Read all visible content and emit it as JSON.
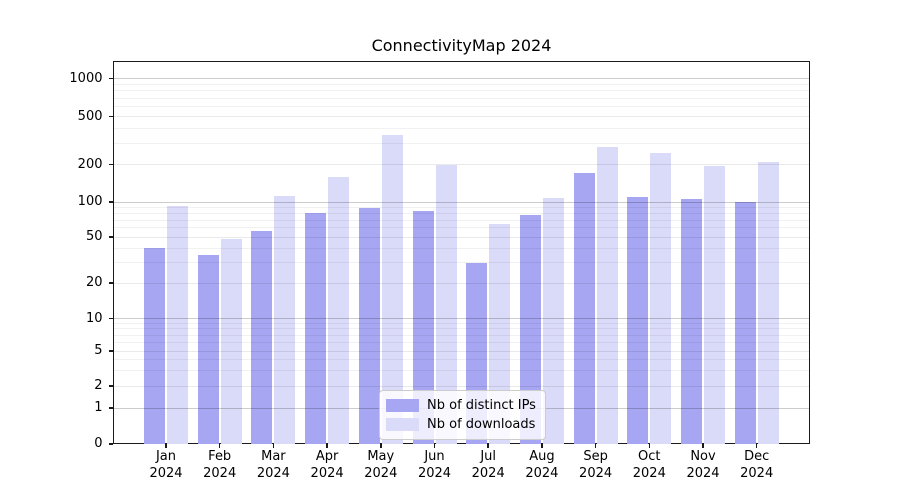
{
  "title": "ConnectivityMap 2024",
  "chart_data": {
    "type": "bar",
    "title": "ConnectivityMap 2024",
    "categories": [
      "Jan 2024",
      "Feb 2024",
      "Mar 2024",
      "Apr 2024",
      "May 2024",
      "Jun 2024",
      "Jul 2024",
      "Aug 2024",
      "Sep 2024",
      "Oct 2024",
      "Nov 2024",
      "Dec 2024"
    ],
    "series": [
      {
        "name": "Nb of distinct IPs",
        "color": "#a6a6f2",
        "values": [
          40,
          35,
          56,
          80,
          88,
          83,
          30,
          78,
          170,
          110,
          106,
          100
        ]
      },
      {
        "name": "Nb of downloads",
        "color": "#dadaf9",
        "values": [
          92,
          48,
          112,
          160,
          350,
          200,
          65,
          108,
          280,
          250,
          195,
          210
        ]
      }
    ],
    "xlabel": "",
    "ylabel": "",
    "yscale": "log-like (symlog/asinh), linear below 1",
    "y_ticks": [
      0,
      1,
      2,
      5,
      10,
      20,
      50,
      100,
      200,
      500,
      1000
    ],
    "ylim": [
      0,
      1350
    ],
    "grid": true,
    "legend_position": "lower center"
  },
  "legend": {
    "items": [
      {
        "label": "Nb of distinct IPs",
        "color": "#a6a6f2"
      },
      {
        "label": "Nb of downloads",
        "color": "#dadaf9"
      }
    ]
  }
}
